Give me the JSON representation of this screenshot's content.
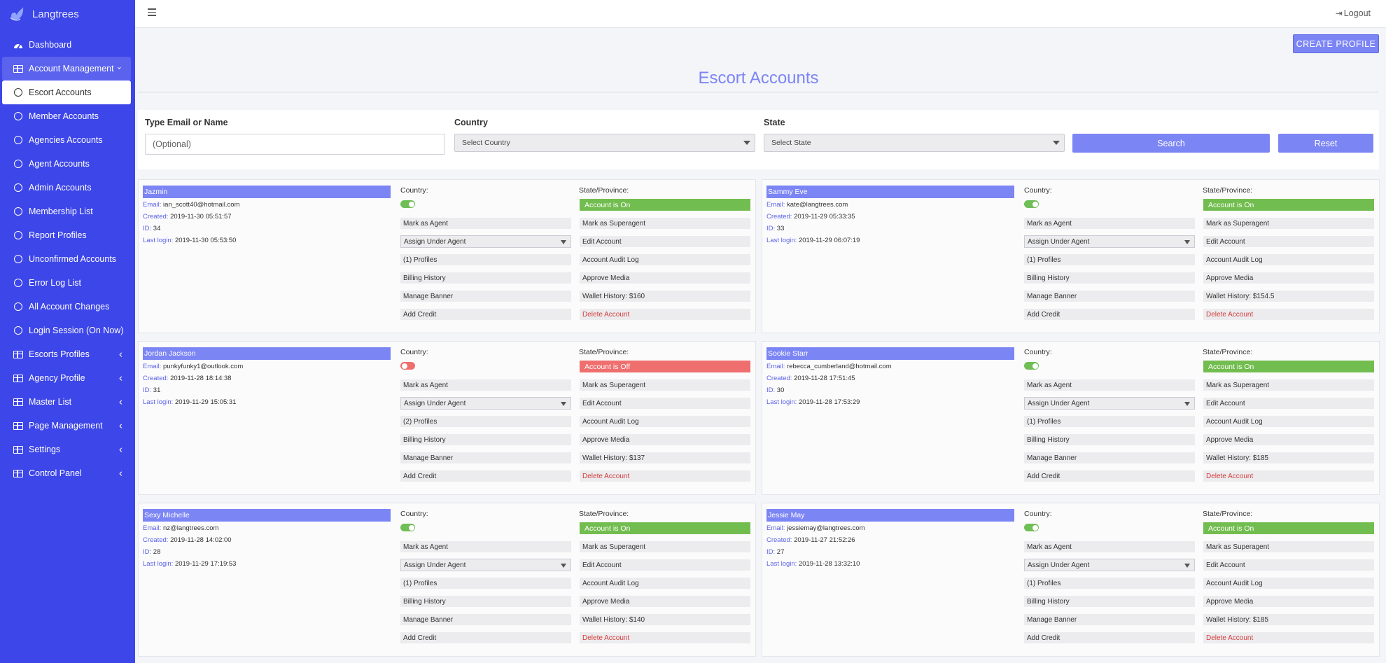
{
  "brand": {
    "name": "Langtrees"
  },
  "sidebar": {
    "items": [
      {
        "label": "Dashboard",
        "icon": "dashboard-icon",
        "kind": "top"
      },
      {
        "label": "Account Management",
        "icon": "table-icon",
        "kind": "parent-open"
      },
      {
        "label": "Escort Accounts",
        "icon": "circle-icon",
        "kind": "child-active"
      },
      {
        "label": "Member Accounts",
        "icon": "circle-icon",
        "kind": "child"
      },
      {
        "label": "Agencies Accounts",
        "icon": "circle-icon",
        "kind": "child"
      },
      {
        "label": "Agent Accounts",
        "icon": "circle-icon",
        "kind": "child"
      },
      {
        "label": "Admin Accounts",
        "icon": "circle-icon",
        "kind": "child"
      },
      {
        "label": "Membership List",
        "icon": "circle-icon",
        "kind": "child"
      },
      {
        "label": "Report Profiles",
        "icon": "circle-icon",
        "kind": "child"
      },
      {
        "label": "Unconfirmed Accounts",
        "icon": "circle-icon",
        "kind": "child"
      },
      {
        "label": "Error Log List",
        "icon": "circle-icon",
        "kind": "child"
      },
      {
        "label": "All Account Changes",
        "icon": "circle-icon",
        "kind": "child"
      },
      {
        "label": "Login Session (On Now)",
        "icon": "circle-icon",
        "kind": "child"
      },
      {
        "label": "Escorts Profiles",
        "icon": "table-icon",
        "kind": "parent"
      },
      {
        "label": "Agency Profile",
        "icon": "table-icon",
        "kind": "parent"
      },
      {
        "label": "Master List",
        "icon": "table-icon",
        "kind": "parent"
      },
      {
        "label": "Page Management",
        "icon": "table-icon",
        "kind": "parent"
      },
      {
        "label": "Settings",
        "icon": "table-icon",
        "kind": "parent"
      },
      {
        "label": "Control Panel",
        "icon": "table-icon",
        "kind": "parent"
      }
    ]
  },
  "header": {
    "logout_label": "Logout"
  },
  "main": {
    "create_label": "CREATE PROFILE",
    "title": "Escort Accounts",
    "filters": {
      "email_label": "Type Email or Name",
      "email_placeholder": "(Optional)",
      "country_label": "Country",
      "country_value": "Select Country",
      "state_label": "State",
      "state_value": "Select State",
      "search_label": "Search",
      "reset_label": "Reset"
    },
    "field_labels": {
      "email": "Email:",
      "created": "Created:",
      "id": "ID:",
      "last_login": "Last login:",
      "country": "Country:",
      "state": "State/Province:"
    },
    "accounts": [
      {
        "name": "Jazmin",
        "email": "ian_scott40@hotmail.com",
        "created": "2019-11-30 05:51:57",
        "id": "34",
        "last_login": "2019-11-30 05:53:50",
        "on": true,
        "status": "Account is On",
        "profiles": "(1) Profiles",
        "wallet": "Wallet History: $160"
      },
      {
        "name": "Sammy Eve",
        "email": "kate@langtrees.com",
        "created": "2019-11-29 05:33:35",
        "id": "33",
        "last_login": "2019-11-29 06:07:19",
        "on": true,
        "status": "Account is On",
        "profiles": "(1) Profiles",
        "wallet": "Wallet History: $154.5"
      },
      {
        "name": "Jordan Jackson",
        "email": "punkyfunky1@outlook.com",
        "created": "2019-11-28 18:14:38",
        "id": "31",
        "last_login": "2019-11-29 15:05:31",
        "on": false,
        "status": "Account is Off",
        "profiles": "(2) Profiles",
        "wallet": "Wallet History: $137"
      },
      {
        "name": "Sookie Starr",
        "email": "rebecca_cumberland@hotmail.com",
        "created": "2019-11-28 17:51:45",
        "id": "30",
        "last_login": "2019-11-28 17:53:29",
        "on": true,
        "status": "Account is On",
        "profiles": "(1) Profiles",
        "wallet": "Wallet History: $185"
      },
      {
        "name": "Sexy Michelle",
        "email": "nz@langtrees.com",
        "created": "2019-11-28 14:02:00",
        "id": "28",
        "last_login": "2019-11-29 17:19:53",
        "on": true,
        "status": "Account is On",
        "profiles": "(1) Profiles",
        "wallet": "Wallet History: $140"
      },
      {
        "name": "Jessie May",
        "email": "jessiemay@langtrees.com",
        "created": "2019-11-27 21:52:26",
        "id": "27",
        "last_login": "2019-11-28 13:32:10",
        "on": true,
        "status": "Account is On",
        "profiles": "(1) Profiles",
        "wallet": "Wallet History: $185"
      }
    ],
    "actions": {
      "mark_agent": "Mark as Agent",
      "assign_agent": "Assign Under Agent",
      "billing": "Billing History",
      "banner": "Manage Banner",
      "credit": "Add Credit",
      "mark_superagent": "Mark as Superagent",
      "edit": "Edit Account",
      "audit": "Account Audit Log",
      "approve_media": "Approve Media",
      "delete": "Delete Account"
    }
  },
  "colors": {
    "sidebar": "#3d46e8",
    "accent": "#7c85f4",
    "on": "#72bd4f",
    "off": "#ef6e6e",
    "delete": "#d23c3c"
  }
}
